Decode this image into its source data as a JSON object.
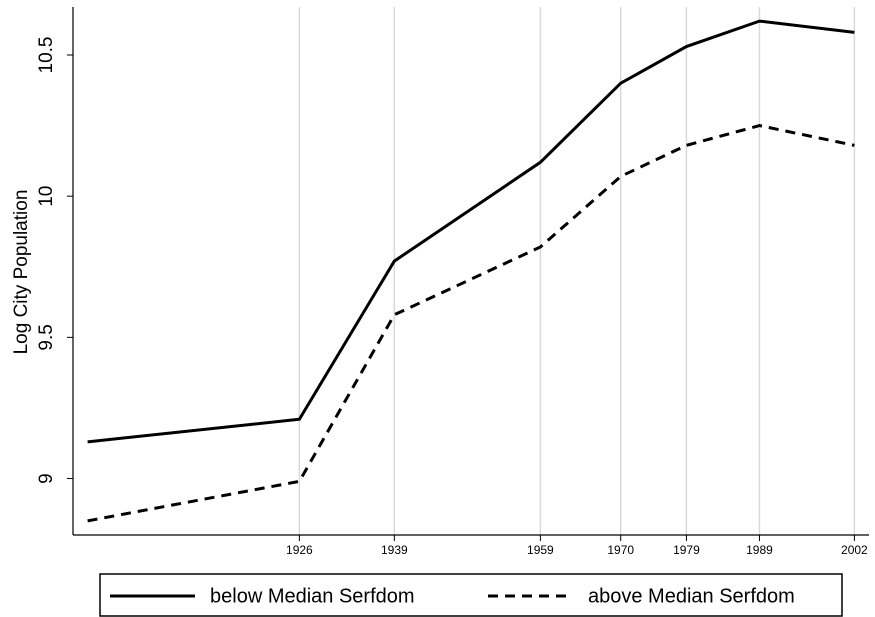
{
  "chart_data": {
    "type": "line",
    "y_label": "Log City Population",
    "x": [
      1897,
      1926,
      1939,
      1959,
      1970,
      1979,
      1989,
      2002
    ],
    "series": [
      {
        "name": "below Median Serfdom",
        "color": "#000000",
        "dash": "solid",
        "values": [
          9.13,
          9.21,
          9.77,
          10.12,
          10.4,
          10.53,
          10.62,
          10.58
        ]
      },
      {
        "name": "above Median Serfdom",
        "color": "#000000",
        "dash": "dashed",
        "values": [
          8.85,
          8.99,
          9.58,
          9.82,
          10.07,
          10.18,
          10.25,
          10.18
        ]
      }
    ],
    "xlim": [
      1895,
      2004
    ],
    "xticks": [
      1926,
      1939,
      1959,
      1970,
      1979,
      1989,
      2002
    ],
    "ylim": [
      8.8,
      10.67
    ],
    "yticks": [
      9,
      9.5,
      10,
      10.5
    ],
    "grid": "x",
    "legend_position": "bottom"
  }
}
